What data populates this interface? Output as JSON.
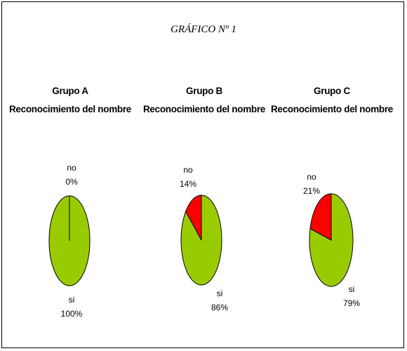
{
  "figure_title": "GRÁFICO Nº 1",
  "colors": {
    "si": "#99cc00",
    "no": "#ff0000",
    "outline": "#000000"
  },
  "chart_data": [
    {
      "type": "pie",
      "title": "Grupo A",
      "subtitle": "Reconocimiento del nombre",
      "slices": [
        {
          "label": "no",
          "value": 0,
          "value_label": "0%",
          "color": "#ff0000"
        },
        {
          "label": "si",
          "value": 100,
          "value_label": "100%",
          "color": "#99cc00"
        }
      ]
    },
    {
      "type": "pie",
      "title": "Grupo B",
      "subtitle": "Reconocimiento del nombre",
      "slices": [
        {
          "label": "no",
          "value": 14,
          "value_label": "14%",
          "color": "#ff0000"
        },
        {
          "label": "si",
          "value": 86,
          "value_label": "86%",
          "color": "#99cc00"
        }
      ]
    },
    {
      "type": "pie",
      "title": "Grupo C",
      "subtitle": "Reconocimiento del nombre",
      "slices": [
        {
          "label": "no",
          "value": 21,
          "value_label": "21%",
          "color": "#ff0000"
        },
        {
          "label": "si",
          "value": 79,
          "value_label": "79%",
          "color": "#99cc00"
        }
      ]
    }
  ]
}
